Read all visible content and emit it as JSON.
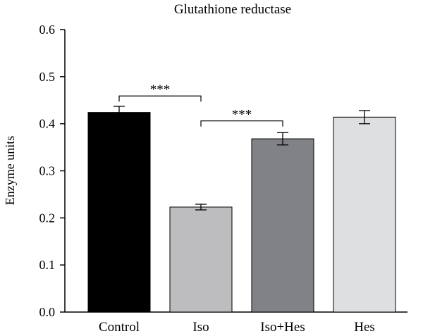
{
  "chart_data": {
    "type": "bar",
    "title": "Glutathione reductase",
    "xlabel": "",
    "ylabel": "Enzyme units",
    "ylim": [
      0,
      0.6
    ],
    "yticks": [
      "0.0",
      "0.1",
      "0.2",
      "0.3",
      "0.4",
      "0.5",
      "0.6"
    ],
    "categories": [
      "Control",
      "Iso",
      "Iso+Hes",
      "Hes"
    ],
    "values": [
      0.424,
      0.223,
      0.368,
      0.414
    ],
    "errors": [
      0.013,
      0.006,
      0.013,
      0.014
    ],
    "colors": [
      "#000000",
      "#bdbdc0",
      "#818286",
      "#dedfe0"
    ],
    "significance": [
      {
        "from": 0,
        "to": 1,
        "label": "***",
        "y": 0.459
      },
      {
        "from": 1,
        "to": 2,
        "label": "***",
        "y": 0.406
      }
    ],
    "grid": false
  }
}
